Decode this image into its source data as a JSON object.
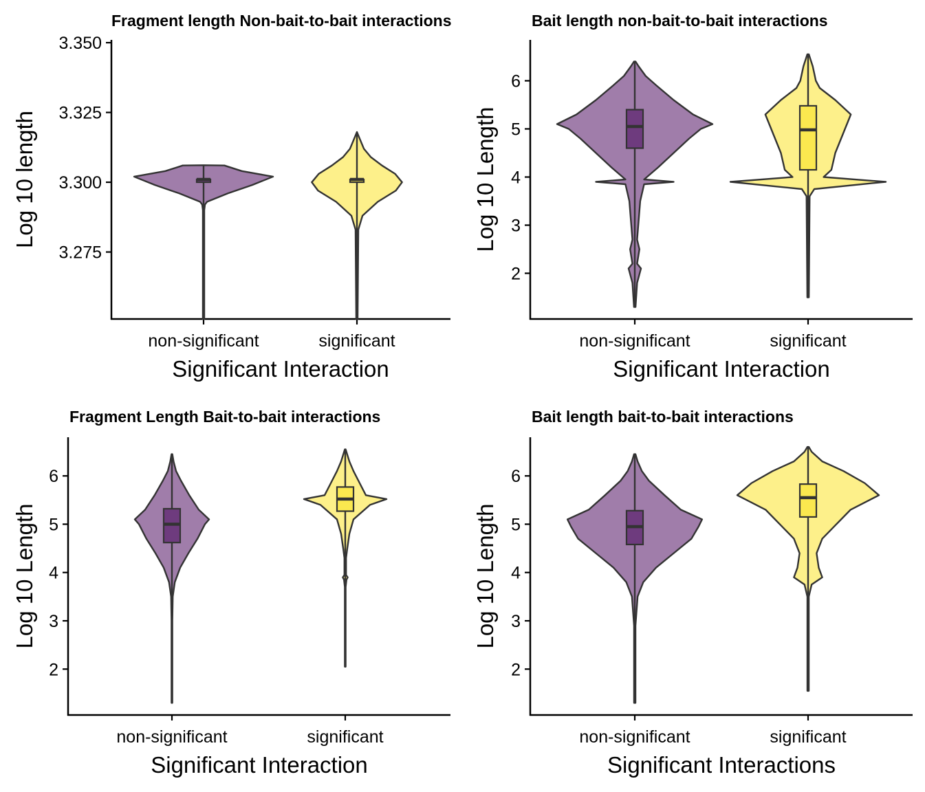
{
  "colors": {
    "non_significant": "#a07daa",
    "significant": "#fdf08a",
    "box_non_significant": "#6e3b7e",
    "box_significant": "#fbe84f",
    "outline": "#333333"
  },
  "panels": [
    {
      "title": "Fragment length Non-bait-to-bait interactions",
      "xlabel": "Significant Interaction",
      "ylabel": "Log 10 length",
      "yticks": [
        "3.275",
        "3.300",
        "3.325",
        "3.350"
      ],
      "xticks": [
        "non-significant",
        "significant"
      ]
    },
    {
      "title": "Bait length non-bait-to-bait interactions",
      "xlabel": "Significant Interaction",
      "ylabel": "Log 10 Length",
      "yticks": [
        "2",
        "3",
        "4",
        "5",
        "6"
      ],
      "xticks": [
        "non-significant",
        "significant"
      ]
    },
    {
      "title": "Fragment Length Bait-to-bait interactions",
      "xlabel": "Significant Interaction",
      "ylabel": "Log 10 Length",
      "yticks": [
        "2",
        "3",
        "4",
        "5",
        "6"
      ],
      "xticks": [
        "non-significant",
        "significant"
      ]
    },
    {
      "title": "Bait length bait-to-bait interactions",
      "xlabel": "Significant Interactions",
      "ylabel": "Log 10 Length",
      "yticks": [
        "2",
        "3",
        "4",
        "5",
        "6"
      ],
      "xticks": [
        "non-significant",
        "significant"
      ]
    }
  ],
  "chart_data": [
    {
      "type": "violin",
      "title": "Fragment length Non-bait-to-bait interactions",
      "xlabel": "Significant Interaction",
      "ylabel": "Log 10 length",
      "ylim": [
        3.251,
        3.351
      ],
      "categories": [
        "non-significant",
        "significant"
      ],
      "series": [
        {
          "category": "non-significant",
          "min": 3.251,
          "max": 3.306,
          "q1": 3.3,
          "median": 3.301,
          "q3": 3.301,
          "density": [
            [
              3.251,
              0.01
            ],
            [
              3.29,
              0.01
            ],
            [
              3.292,
              0.02
            ],
            [
              3.293,
              0.05
            ],
            [
              3.296,
              0.35
            ],
            [
              3.299,
              0.7
            ],
            [
              3.302,
              1.0
            ],
            [
              3.304,
              0.55
            ],
            [
              3.306,
              0.3
            ],
            [
              3.3061,
              0.0
            ]
          ]
        },
        {
          "category": "significant",
          "min": 3.251,
          "max": 3.318,
          "q1": 3.3,
          "median": 3.301,
          "q3": 3.301,
          "density": [
            [
              3.251,
              0.01
            ],
            [
              3.283,
              0.02
            ],
            [
              3.288,
              0.08
            ],
            [
              3.293,
              0.3
            ],
            [
              3.297,
              0.56
            ],
            [
              3.3,
              0.65
            ],
            [
              3.303,
              0.55
            ],
            [
              3.306,
              0.36
            ],
            [
              3.309,
              0.2
            ],
            [
              3.312,
              0.1
            ],
            [
              3.315,
              0.05
            ],
            [
              3.318,
              0.0
            ]
          ]
        }
      ]
    },
    {
      "type": "violin",
      "title": "Bait length non-bait-to-bait interactions",
      "xlabel": "Significant Interaction",
      "ylabel": "Log 10 Length",
      "ylim": [
        1.05,
        6.85
      ],
      "categories": [
        "non-significant",
        "significant"
      ],
      "series": [
        {
          "category": "non-significant",
          "min": 1.3,
          "max": 6.4,
          "q1": 4.6,
          "median": 5.05,
          "q3": 5.4,
          "density": [
            [
              1.3,
              0.01
            ],
            [
              1.8,
              0.03
            ],
            [
              2.1,
              0.08
            ],
            [
              2.2,
              0.03
            ],
            [
              2.5,
              0.06
            ],
            [
              2.7,
              0.03
            ],
            [
              3.5,
              0.07
            ],
            [
              3.85,
              0.12
            ],
            [
              3.9,
              0.5
            ],
            [
              3.95,
              0.12
            ],
            [
              4.2,
              0.3
            ],
            [
              4.5,
              0.5
            ],
            [
              4.8,
              0.7
            ],
            [
              5.0,
              0.85
            ],
            [
              5.1,
              1.0
            ],
            [
              5.3,
              0.75
            ],
            [
              5.6,
              0.5
            ],
            [
              5.9,
              0.28
            ],
            [
              6.1,
              0.14
            ],
            [
              6.3,
              0.05
            ],
            [
              6.4,
              0.01
            ]
          ]
        },
        {
          "category": "significant",
          "min": 1.5,
          "max": 6.55,
          "q1": 4.15,
          "median": 4.98,
          "q3": 5.48,
          "density": [
            [
              1.5,
              0.01
            ],
            [
              3.6,
              0.02
            ],
            [
              3.75,
              0.08
            ],
            [
              3.9,
              1.0
            ],
            [
              4.0,
              0.2
            ],
            [
              4.15,
              0.3
            ],
            [
              4.5,
              0.35
            ],
            [
              4.9,
              0.45
            ],
            [
              5.3,
              0.55
            ],
            [
              5.6,
              0.35
            ],
            [
              5.85,
              0.15
            ],
            [
              6.0,
              0.1
            ],
            [
              6.3,
              0.06
            ],
            [
              6.55,
              0.01
            ]
          ]
        }
      ]
    },
    {
      "type": "violin",
      "title": "Fragment Length Bait-to-bait interactions",
      "xlabel": "Significant Interaction",
      "ylabel": "Log 10 Length",
      "ylim": [
        1.05,
        6.8
      ],
      "categories": [
        "non-significant",
        "significant"
      ],
      "series": [
        {
          "category": "non-significant",
          "min": 1.3,
          "max": 6.45,
          "q1": 4.62,
          "median": 5.0,
          "q3": 5.32,
          "density": [
            [
              1.3,
              0.01
            ],
            [
              3.0,
              0.01
            ],
            [
              3.5,
              0.02
            ],
            [
              3.8,
              0.07
            ],
            [
              4.1,
              0.2
            ],
            [
              4.4,
              0.4
            ],
            [
              4.7,
              0.62
            ],
            [
              5.0,
              0.8
            ],
            [
              5.1,
              0.9
            ],
            [
              5.3,
              0.65
            ],
            [
              5.6,
              0.42
            ],
            [
              5.9,
              0.22
            ],
            [
              6.1,
              0.1
            ],
            [
              6.3,
              0.04
            ],
            [
              6.45,
              0.01
            ]
          ]
        },
        {
          "category": "significant",
          "min": 2.05,
          "max": 6.55,
          "q1": 5.27,
          "median": 5.52,
          "q3": 5.77,
          "density": [
            [
              2.05,
              0.01
            ],
            [
              3.7,
              0.01
            ],
            [
              3.85,
              0.03
            ],
            [
              3.9,
              0.06
            ],
            [
              3.95,
              0.02
            ],
            [
              4.3,
              0.02
            ],
            [
              4.5,
              0.05
            ],
            [
              4.8,
              0.1
            ],
            [
              5.1,
              0.2
            ],
            [
              5.4,
              0.6
            ],
            [
              5.52,
              1.0
            ],
            [
              5.6,
              0.5
            ],
            [
              5.85,
              0.35
            ],
            [
              6.1,
              0.2
            ],
            [
              6.3,
              0.1
            ],
            [
              6.55,
              0.01
            ]
          ]
        }
      ]
    },
    {
      "type": "violin",
      "title": "Bait length bait-to-bait interactions",
      "xlabel": "Significant Interactions",
      "ylabel": "Log 10 Length",
      "ylim": [
        1.05,
        6.8
      ],
      "categories": [
        "non-significant",
        "significant"
      ],
      "series": [
        {
          "category": "non-significant",
          "min": 1.3,
          "max": 6.45,
          "q1": 4.58,
          "median": 4.95,
          "q3": 5.28,
          "density": [
            [
              1.3,
              0.01
            ],
            [
              2.9,
              0.01
            ],
            [
              3.5,
              0.04
            ],
            [
              3.8,
              0.12
            ],
            [
              4.1,
              0.3
            ],
            [
              4.4,
              0.55
            ],
            [
              4.7,
              0.8
            ],
            [
              4.95,
              0.9
            ],
            [
              5.1,
              0.95
            ],
            [
              5.3,
              0.65
            ],
            [
              5.6,
              0.42
            ],
            [
              5.9,
              0.2
            ],
            [
              6.1,
              0.1
            ],
            [
              6.3,
              0.04
            ],
            [
              6.45,
              0.01
            ]
          ]
        },
        {
          "category": "significant",
          "min": 1.55,
          "max": 6.6,
          "q1": 5.15,
          "median": 5.55,
          "q3": 5.83,
          "density": [
            [
              1.55,
              0.01
            ],
            [
              3.5,
              0.01
            ],
            [
              3.75,
              0.05
            ],
            [
              3.9,
              0.2
            ],
            [
              4.1,
              0.15
            ],
            [
              4.4,
              0.12
            ],
            [
              4.7,
              0.2
            ],
            [
              5.0,
              0.4
            ],
            [
              5.3,
              0.6
            ],
            [
              5.6,
              1.0
            ],
            [
              5.85,
              0.8
            ],
            [
              6.1,
              0.5
            ],
            [
              6.3,
              0.2
            ],
            [
              6.5,
              0.05
            ],
            [
              6.6,
              0.01
            ]
          ]
        }
      ]
    }
  ]
}
